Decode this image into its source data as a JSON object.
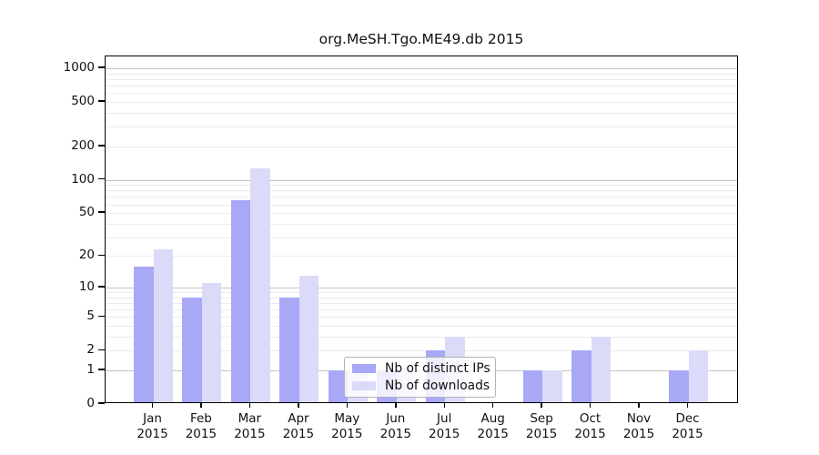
{
  "title": "org.MeSH.Tgo.ME49.db 2015",
  "chart_data": {
    "type": "bar",
    "title": "org.MeSH.Tgo.ME49.db 2015",
    "categories": [
      "Jan",
      "Feb",
      "Mar",
      "Apr",
      "May",
      "Jun",
      "Jul",
      "Aug",
      "Sep",
      "Oct",
      "Nov",
      "Dec"
    ],
    "year": "2015",
    "series": [
      {
        "name": "Nb of distinct IPs",
        "color": "#a8a8f7",
        "values": [
          16,
          8,
          66,
          8,
          1,
          1,
          2,
          0,
          1,
          2,
          0,
          1
        ]
      },
      {
        "name": "Nb of downloads",
        "color": "#dbdbf9",
        "values": [
          23,
          11,
          128,
          13,
          1,
          1,
          3,
          0,
          1,
          3,
          0,
          2
        ]
      }
    ],
    "y_scale": "log1p",
    "y_tick_values": [
      1000,
      500,
      200,
      100,
      50,
      20,
      10,
      5,
      2,
      1,
      0
    ],
    "y_tick_labels": [
      "1000",
      "500",
      "200",
      "100",
      "50",
      "20",
      "10",
      "5",
      "2",
      "1",
      "0"
    ],
    "y_major_gridlines": [
      1,
      10,
      100,
      1000
    ],
    "y_minor_gridlines": [
      2,
      3,
      4,
      5,
      6,
      7,
      8,
      9,
      20,
      30,
      40,
      50,
      60,
      70,
      80,
      90,
      200,
      300,
      400,
      500,
      600,
      700,
      800,
      900
    ],
    "ylim": [
      0,
      1200
    ],
    "grid": true,
    "legend_position": "bottom-center-left",
    "axis_color": "#000000",
    "background_color": "#ffffff"
  }
}
